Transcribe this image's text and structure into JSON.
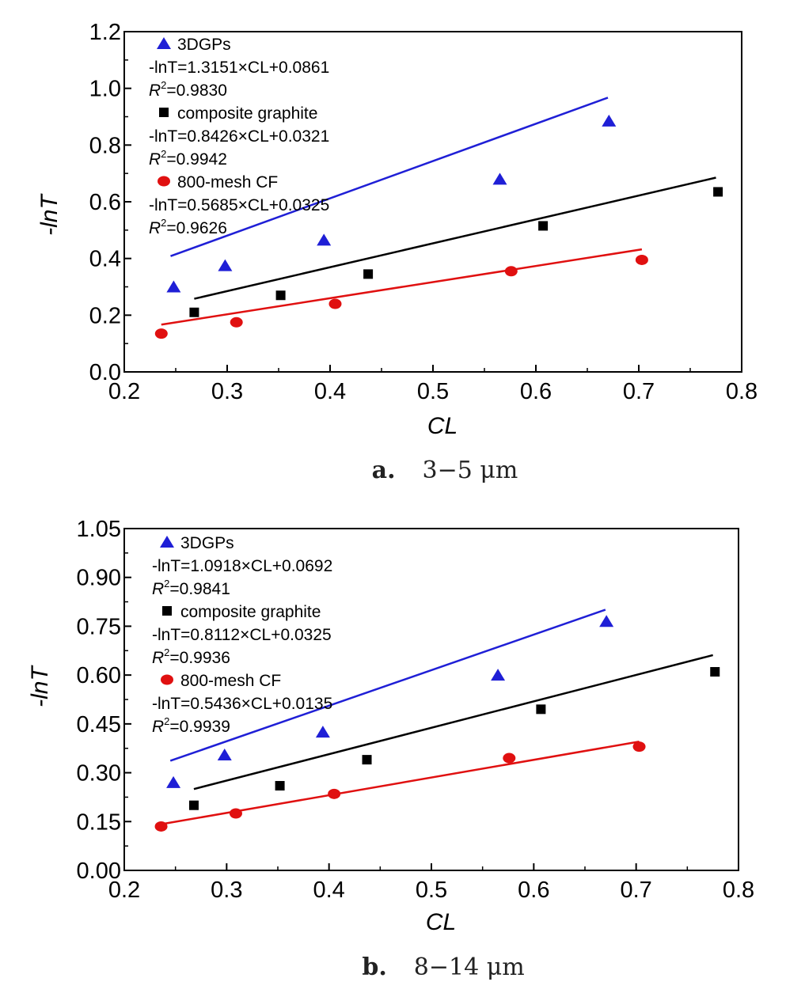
{
  "chart_data": [
    {
      "type": "scatter",
      "caption_tag": "a.",
      "caption_text": "3−5 μm",
      "xlabel": "CL",
      "ylabel": "-lnT",
      "xlim": [
        0.2,
        0.8
      ],
      "ylim": [
        0.0,
        1.2
      ],
      "x_ticks": [
        "0.2",
        "0.3",
        "0.4",
        "0.5",
        "0.6",
        "0.7",
        "0.8"
      ],
      "y_ticks": [
        "0.0",
        "0.2",
        "0.4",
        "0.6",
        "0.8",
        "1.0",
        "1.2"
      ],
      "legend_position": "top-left",
      "series": [
        {
          "name": "3DGPs",
          "marker": "triangle",
          "color": "#1f1fd6",
          "fit_equation": "-lnT=1.3151×CL+0.0861",
          "r2_value": "=0.9830",
          "slope": 1.3151,
          "intercept": 0.0861,
          "fit_range": [
            0.245,
            0.67
          ],
          "x": [
            0.248,
            0.298,
            0.394,
            0.565,
            0.671
          ],
          "y": [
            0.3,
            0.375,
            0.465,
            0.68,
            0.885
          ]
        },
        {
          "name": "composite graphite",
          "marker": "square",
          "color": "#000000",
          "fit_equation": "-lnT=0.8426×CL+0.0321",
          "r2_value": "=0.9942",
          "slope": 0.8426,
          "intercept": 0.0321,
          "fit_range": [
            0.268,
            0.775
          ],
          "x": [
            0.268,
            0.352,
            0.437,
            0.607,
            0.777
          ],
          "y": [
            0.21,
            0.27,
            0.345,
            0.515,
            0.635
          ]
        },
        {
          "name": "800-mesh CF",
          "marker": "circle",
          "color": "#e01010",
          "fit_equation": "-lnT=0.5685×CL+0.0325",
          "r2_value": "=0.9626",
          "slope": 0.5685,
          "intercept": 0.0325,
          "fit_range": [
            0.236,
            0.703
          ],
          "x": [
            0.236,
            0.309,
            0.405,
            0.576,
            0.703
          ],
          "y": [
            0.135,
            0.175,
            0.24,
            0.355,
            0.395
          ]
        }
      ]
    },
    {
      "type": "scatter",
      "caption_tag": "b.",
      "caption_text": "8−14 μm",
      "xlabel": "CL",
      "ylabel": "-lnT",
      "xlim": [
        0.2,
        0.8
      ],
      "ylim": [
        0.0,
        1.05
      ],
      "x_ticks": [
        "0.2",
        "0.3",
        "0.4",
        "0.5",
        "0.6",
        "0.7",
        "0.8"
      ],
      "y_ticks": [
        "0.00",
        "0.15",
        "0.30",
        "0.45",
        "0.60",
        "0.75",
        "0.90",
        "1.05"
      ],
      "legend_position": "top-left",
      "series": [
        {
          "name": "3DGPs",
          "marker": "triangle",
          "color": "#1f1fd6",
          "fit_equation": "-lnT=1.0918×CL+0.0692",
          "r2_value": "=0.9841",
          "slope": 1.0918,
          "intercept": 0.0692,
          "fit_range": [
            0.245,
            0.67
          ],
          "x": [
            0.248,
            0.298,
            0.394,
            0.565,
            0.671
          ],
          "y": [
            0.27,
            0.355,
            0.425,
            0.6,
            0.765
          ]
        },
        {
          "name": "composite graphite",
          "marker": "square",
          "color": "#000000",
          "fit_equation": "-lnT=0.8112×CL+0.0325",
          "r2_value": "=0.9936",
          "slope": 0.8112,
          "intercept": 0.0325,
          "fit_range": [
            0.268,
            0.775
          ],
          "x": [
            0.268,
            0.352,
            0.437,
            0.607,
            0.777
          ],
          "y": [
            0.2,
            0.26,
            0.34,
            0.495,
            0.61
          ]
        },
        {
          "name": "800-mesh CF",
          "marker": "circle",
          "color": "#e01010",
          "fit_equation": "-lnT=0.5436×CL+0.0135",
          "r2_value": "=0.9939",
          "slope": 0.5436,
          "intercept": 0.0135,
          "fit_range": [
            0.236,
            0.703
          ],
          "x": [
            0.236,
            0.309,
            0.405,
            0.576,
            0.703
          ],
          "y": [
            0.135,
            0.175,
            0.235,
            0.345,
            0.38
          ]
        }
      ]
    }
  ]
}
